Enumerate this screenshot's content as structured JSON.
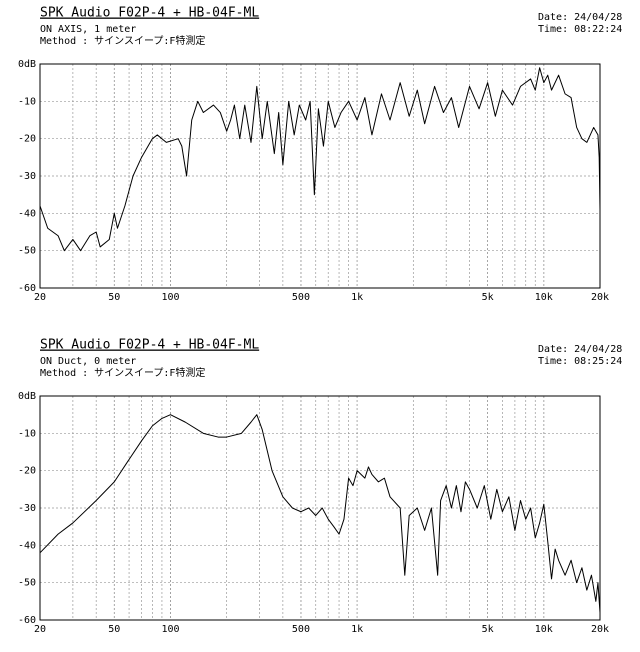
{
  "chart_data": [
    {
      "type": "line",
      "title": "SPK Audio F02P-4 + HB-04F-ML",
      "subtitle": [
        "ON AXIS, 1 meter",
        "Method : サインスイープ:F特測定"
      ],
      "date": "Date: 24/04/28",
      "time": "Time: 08:22:24",
      "log_x": true,
      "grid": true,
      "color": "#000000",
      "xlim": [
        20,
        20000
      ],
      "ylim": [
        -60,
        0
      ],
      "xticks": [
        20,
        50,
        100,
        500,
        {
          "value": 1000,
          "label": "1k"
        },
        {
          "value": 5000,
          "label": "5k"
        },
        {
          "value": 10000,
          "label": "10k"
        },
        {
          "value": 20000,
          "label": "20k"
        }
      ],
      "yticks": [
        {
          "value": 0,
          "label": "0dB"
        },
        -10,
        -20,
        -30,
        -40,
        -50,
        -60
      ],
      "x": [
        20,
        22,
        25,
        27,
        30,
        33,
        37,
        40,
        42,
        47,
        50,
        52,
        57,
        63,
        70,
        80,
        85,
        95,
        110,
        115,
        122,
        130,
        140,
        150,
        170,
        185,
        200,
        210,
        220,
        235,
        250,
        270,
        290,
        310,
        330,
        360,
        380,
        400,
        430,
        460,
        490,
        530,
        560,
        590,
        620,
        660,
        700,
        760,
        820,
        900,
        1000,
        1100,
        1200,
        1350,
        1500,
        1700,
        1900,
        2100,
        2300,
        2600,
        2900,
        3200,
        3500,
        4000,
        4500,
        5000,
        5500,
        6000,
        6800,
        7500,
        8500,
        9000,
        9500,
        10000,
        10500,
        11000,
        12000,
        13000,
        14000,
        15000,
        16000,
        17000,
        18500,
        19500,
        19800,
        20000
      ],
      "values": [
        -38,
        -44,
        -46,
        -50,
        -47,
        -50,
        -46,
        -45,
        -49,
        -47,
        -40,
        -44,
        -38,
        -30,
        -25,
        -20,
        -19,
        -21,
        -20,
        -22,
        -30,
        -15,
        -10,
        -13,
        -11,
        -13,
        -18,
        -15,
        -11,
        -20,
        -11,
        -21,
        -6,
        -20,
        -10,
        -24,
        -13,
        -27,
        -10,
        -19,
        -11,
        -15,
        -10,
        -35,
        -12,
        -22,
        -10,
        -17,
        -13,
        -10,
        -15,
        -9,
        -19,
        -8,
        -15,
        -5,
        -14,
        -7,
        -16,
        -6,
        -13,
        -9,
        -17,
        -6,
        -12,
        -5,
        -14,
        -7,
        -11,
        -6,
        -4,
        -7,
        -1,
        -5,
        -3,
        -7,
        -3,
        -8,
        -9,
        -17,
        -20,
        -21,
        -17,
        -19,
        -25,
        -39
      ]
    },
    {
      "type": "line",
      "title": "SPK Audio F02P-4 + HB-04F-ML",
      "subtitle": [
        "ON Duct, 0 meter",
        "Method : サインスイープ:F特測定"
      ],
      "date": "Date: 24/04/28",
      "time": "Time: 08:25:24",
      "log_x": true,
      "grid": true,
      "color": "#000000",
      "xlim": [
        20,
        20000
      ],
      "ylim": [
        -60,
        0
      ],
      "xticks": [
        20,
        50,
        100,
        500,
        {
          "value": 1000,
          "label": "1k"
        },
        {
          "value": 5000,
          "label": "5k"
        },
        {
          "value": 10000,
          "label": "10k"
        },
        {
          "value": 20000,
          "label": "20k"
        }
      ],
      "yticks": [
        {
          "value": 0,
          "label": "0dB"
        },
        -10,
        -20,
        -30,
        -40,
        -50,
        -60
      ],
      "x": [
        20,
        25,
        30,
        40,
        50,
        60,
        70,
        80,
        90,
        100,
        120,
        150,
        180,
        200,
        240,
        270,
        290,
        310,
        350,
        400,
        450,
        500,
        550,
        600,
        650,
        700,
        750,
        800,
        850,
        900,
        950,
        1000,
        1100,
        1150,
        1200,
        1300,
        1400,
        1500,
        1700,
        1800,
        1900,
        2100,
        2300,
        2500,
        2700,
        2800,
        3000,
        3200,
        3400,
        3600,
        3800,
        4000,
        4400,
        4800,
        5200,
        5600,
        6000,
        6500,
        7000,
        7500,
        8000,
        8500,
        9000,
        9500,
        10000,
        10500,
        11000,
        11500,
        12000,
        13000,
        14000,
        15000,
        16000,
        17000,
        18000,
        19000,
        19500,
        20000
      ],
      "values": [
        -42,
        -37,
        -34,
        -28,
        -23,
        -17,
        -12,
        -8,
        -6,
        -5,
        -7,
        -10,
        -11,
        -11,
        -10,
        -7,
        -5,
        -9,
        -20,
        -27,
        -30,
        -31,
        -30,
        -32,
        -30,
        -33,
        -35,
        -37,
        -33,
        -22,
        -24,
        -20,
        -22,
        -19,
        -21,
        -23,
        -22,
        -27,
        -30,
        -48,
        -32,
        -30,
        -36,
        -30,
        -48,
        -28,
        -24,
        -30,
        -24,
        -31,
        -23,
        -25,
        -30,
        -24,
        -33,
        -25,
        -31,
        -27,
        -36,
        -28,
        -33,
        -30,
        -38,
        -34,
        -29,
        -39,
        -49,
        -41,
        -44,
        -48,
        -44,
        -50,
        -46,
        -52,
        -48,
        -55,
        -50,
        -58
      ]
    }
  ]
}
